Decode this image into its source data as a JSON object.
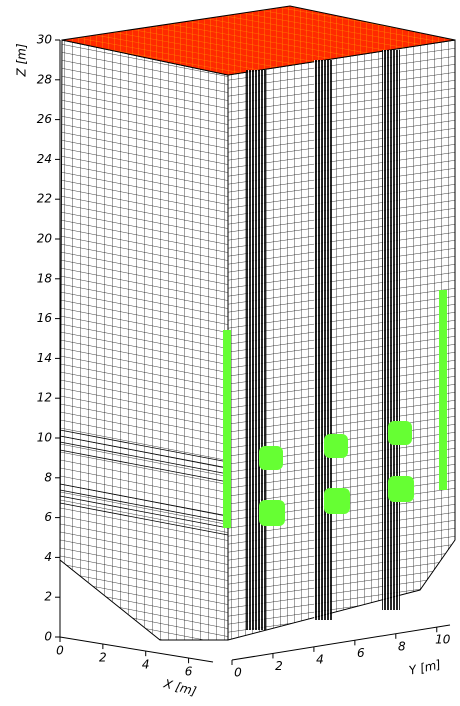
{
  "chart_data": {
    "type": "mesh3d",
    "z_label": "Z [m]",
    "x_label": "X [m]",
    "y_label": "Y [m]",
    "zlim": [
      0,
      30
    ],
    "zticks": [
      0,
      2,
      4,
      6,
      8,
      10,
      12,
      14,
      16,
      18,
      20,
      22,
      24,
      26,
      28,
      30
    ],
    "xlim": [
      0,
      7
    ],
    "xticks": [
      0,
      2,
      4,
      6
    ],
    "ylim": [
      0,
      10.5
    ],
    "yticks": [
      0,
      2,
      4,
      6,
      8,
      10
    ]
  }
}
